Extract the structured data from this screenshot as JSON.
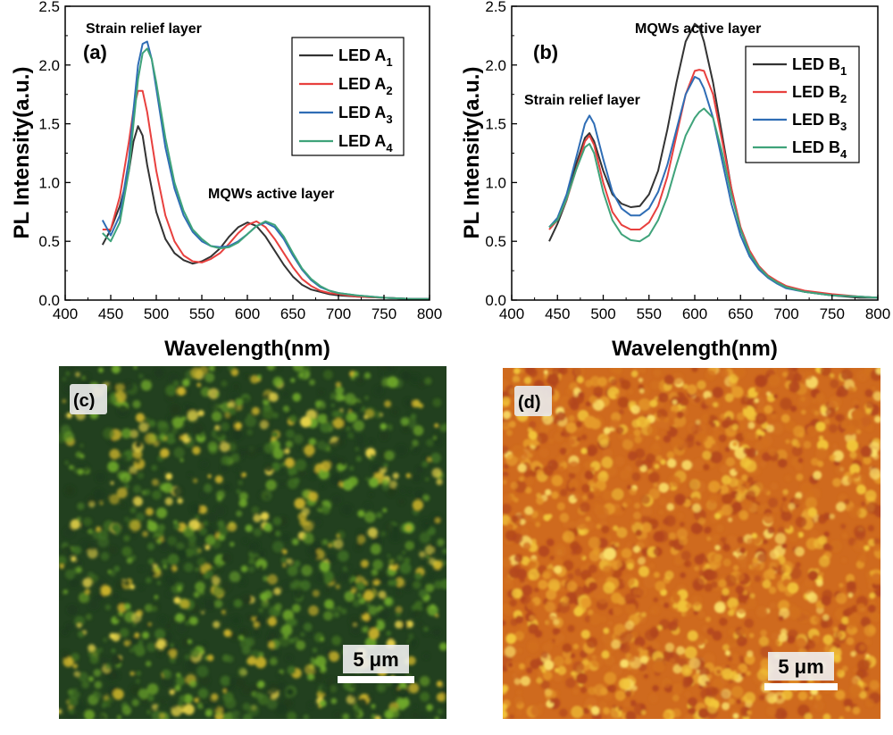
{
  "chart_data": [
    {
      "panel": "(a)",
      "type": "line",
      "xlabel": "Wavelength(nm)",
      "ylabel": "PL Intensity(a.u.)",
      "xlim": [
        400,
        800
      ],
      "ylim": [
        0.0,
        2.5
      ],
      "xticks": [
        "400",
        "450",
        "500",
        "550",
        "600",
        "650",
        "700",
        "750",
        "800"
      ],
      "yticks": [
        "0.0",
        "0.5",
        "1.0",
        "1.5",
        "2.0",
        "2.5"
      ],
      "legend_position": "top-right",
      "annotations": [
        {
          "text": "Strain relief layer",
          "x": 455,
          "y": 2.38
        },
        {
          "text": "MQWs active layer",
          "x": 610,
          "y": 0.93
        }
      ],
      "series": [
        {
          "name": "LED A",
          "sub": "1",
          "color": "#333333",
          "x": [
            441,
            450,
            460,
            470,
            475,
            480,
            485,
            490,
            500,
            510,
            520,
            530,
            540,
            550,
            560,
            570,
            580,
            590,
            600,
            610,
            620,
            630,
            640,
            650,
            660,
            670,
            680,
            690,
            700,
            720,
            750,
            780,
            800
          ],
          "y": [
            0.47,
            0.6,
            0.8,
            1.1,
            1.35,
            1.48,
            1.4,
            1.15,
            0.75,
            0.52,
            0.4,
            0.34,
            0.31,
            0.33,
            0.37,
            0.44,
            0.54,
            0.62,
            0.66,
            0.63,
            0.54,
            0.42,
            0.3,
            0.2,
            0.13,
            0.09,
            0.07,
            0.05,
            0.04,
            0.03,
            0.02,
            0.01,
            0.01
          ]
        },
        {
          "name": "LED A",
          "sub": "2",
          "color": "#e8403e",
          "x": [
            441,
            450,
            460,
            470,
            475,
            480,
            485,
            490,
            500,
            510,
            520,
            530,
            540,
            550,
            560,
            570,
            580,
            590,
            600,
            610,
            620,
            630,
            640,
            650,
            660,
            670,
            680,
            690,
            700,
            720,
            750,
            780,
            800
          ],
          "y": [
            0.6,
            0.6,
            0.88,
            1.35,
            1.62,
            1.78,
            1.78,
            1.6,
            1.1,
            0.72,
            0.5,
            0.38,
            0.33,
            0.32,
            0.35,
            0.4,
            0.48,
            0.57,
            0.64,
            0.67,
            0.62,
            0.52,
            0.4,
            0.28,
            0.18,
            0.12,
            0.08,
            0.06,
            0.05,
            0.03,
            0.02,
            0.01,
            0.01
          ]
        },
        {
          "name": "LED A",
          "sub": "3",
          "color": "#2f6db5",
          "x": [
            441,
            450,
            460,
            470,
            475,
            480,
            485,
            490,
            495,
            500,
            510,
            520,
            530,
            540,
            550,
            560,
            570,
            580,
            590,
            600,
            610,
            620,
            630,
            640,
            650,
            660,
            670,
            680,
            690,
            700,
            720,
            750,
            780,
            800
          ],
          "y": [
            0.68,
            0.55,
            0.72,
            1.2,
            1.62,
            2.0,
            2.18,
            2.2,
            2.05,
            1.8,
            1.3,
            0.95,
            0.72,
            0.58,
            0.5,
            0.46,
            0.45,
            0.46,
            0.5,
            0.56,
            0.63,
            0.66,
            0.62,
            0.52,
            0.38,
            0.26,
            0.17,
            0.11,
            0.08,
            0.06,
            0.04,
            0.02,
            0.01,
            0.01
          ]
        },
        {
          "name": "LED A",
          "sub": "4",
          "color": "#3fa37a",
          "x": [
            441,
            450,
            460,
            470,
            475,
            480,
            485,
            490,
            495,
            500,
            510,
            520,
            530,
            540,
            550,
            560,
            570,
            580,
            590,
            600,
            610,
            620,
            630,
            640,
            650,
            660,
            670,
            680,
            690,
            700,
            720,
            750,
            780,
            800
          ],
          "y": [
            0.57,
            0.5,
            0.66,
            1.1,
            1.5,
            1.88,
            2.1,
            2.14,
            2.05,
            1.85,
            1.38,
            1.0,
            0.76,
            0.6,
            0.52,
            0.46,
            0.44,
            0.45,
            0.49,
            0.56,
            0.63,
            0.67,
            0.64,
            0.54,
            0.4,
            0.27,
            0.18,
            0.12,
            0.08,
            0.06,
            0.04,
            0.02,
            0.01,
            0.01
          ]
        }
      ]
    },
    {
      "panel": "(b)",
      "type": "line",
      "xlabel": "Wavelength(nm)",
      "ylabel": "PL Intensity(a.u.)",
      "xlim": [
        400,
        800
      ],
      "ylim": [
        0.0,
        2.5
      ],
      "xticks": [
        "400",
        "450",
        "500",
        "550",
        "600",
        "650",
        "700",
        "750",
        "800"
      ],
      "yticks": [
        "0.0",
        "0.5",
        "1.0",
        "1.5",
        "2.0",
        "2.5"
      ],
      "legend_position": "top-right",
      "annotations": [
        {
          "text": "MQWs active layer",
          "x": 610,
          "y": 2.53
        },
        {
          "text": "Strain relief layer",
          "x": 453,
          "y": 1.77
        }
      ],
      "series": [
        {
          "name": "LED B",
          "sub": "1",
          "color": "#333333",
          "x": [
            441,
            450,
            460,
            470,
            480,
            485,
            490,
            500,
            510,
            520,
            530,
            540,
            550,
            560,
            570,
            580,
            590,
            600,
            605,
            610,
            620,
            630,
            640,
            650,
            660,
            670,
            680,
            690,
            700,
            720,
            750,
            780,
            800
          ],
          "y": [
            0.5,
            0.65,
            0.85,
            1.15,
            1.38,
            1.42,
            1.35,
            1.1,
            0.9,
            0.82,
            0.79,
            0.8,
            0.9,
            1.1,
            1.45,
            1.85,
            2.2,
            2.35,
            2.32,
            2.2,
            1.85,
            1.4,
            0.95,
            0.6,
            0.4,
            0.28,
            0.2,
            0.15,
            0.11,
            0.07,
            0.04,
            0.02,
            0.02
          ]
        },
        {
          "name": "LED B",
          "sub": "2",
          "color": "#e8403e",
          "x": [
            441,
            450,
            460,
            470,
            480,
            485,
            490,
            500,
            510,
            520,
            530,
            540,
            550,
            560,
            570,
            580,
            590,
            600,
            605,
            610,
            620,
            630,
            640,
            650,
            660,
            670,
            680,
            690,
            700,
            720,
            750,
            780,
            800
          ],
          "y": [
            0.6,
            0.68,
            0.85,
            1.1,
            1.35,
            1.4,
            1.32,
            1.0,
            0.75,
            0.64,
            0.6,
            0.6,
            0.66,
            0.8,
            1.05,
            1.4,
            1.75,
            1.95,
            1.96,
            1.95,
            1.75,
            1.35,
            0.95,
            0.62,
            0.42,
            0.29,
            0.21,
            0.16,
            0.12,
            0.08,
            0.05,
            0.03,
            0.02
          ]
        },
        {
          "name": "LED B",
          "sub": "3",
          "color": "#2f6db5",
          "x": [
            441,
            450,
            460,
            470,
            480,
            485,
            490,
            500,
            510,
            520,
            530,
            540,
            550,
            560,
            570,
            580,
            590,
            600,
            605,
            610,
            620,
            630,
            640,
            650,
            660,
            670,
            680,
            690,
            700,
            720,
            750,
            780,
            800
          ],
          "y": [
            0.62,
            0.7,
            0.9,
            1.2,
            1.5,
            1.57,
            1.5,
            1.2,
            0.92,
            0.78,
            0.72,
            0.72,
            0.78,
            0.92,
            1.15,
            1.45,
            1.75,
            1.9,
            1.88,
            1.8,
            1.55,
            1.18,
            0.82,
            0.55,
            0.37,
            0.26,
            0.19,
            0.14,
            0.1,
            0.07,
            0.04,
            0.03,
            0.02
          ]
        },
        {
          "name": "LED B",
          "sub": "4",
          "color": "#3fa37a",
          "x": [
            441,
            450,
            460,
            470,
            480,
            485,
            490,
            500,
            510,
            520,
            530,
            540,
            550,
            560,
            570,
            580,
            590,
            600,
            605,
            610,
            620,
            630,
            640,
            650,
            660,
            670,
            680,
            690,
            700,
            720,
            750,
            780,
            800
          ],
          "y": [
            0.62,
            0.68,
            0.86,
            1.1,
            1.3,
            1.33,
            1.25,
            0.92,
            0.68,
            0.56,
            0.51,
            0.5,
            0.55,
            0.68,
            0.88,
            1.15,
            1.4,
            1.55,
            1.6,
            1.63,
            1.55,
            1.25,
            0.9,
            0.6,
            0.4,
            0.28,
            0.2,
            0.15,
            0.11,
            0.07,
            0.04,
            0.03,
            0.02
          ]
        }
      ]
    }
  ],
  "images": [
    {
      "label": "(c)",
      "scale_bar": "5 μm",
      "palette": [
        "#1f3a1c",
        "#3f6e22",
        "#6fa82a",
        "#c9b12a",
        "#e8d44a"
      ]
    },
    {
      "label": "(d)",
      "scale_bar": "5 μm",
      "palette": [
        "#b2461c",
        "#d2701f",
        "#e59a2a",
        "#f2c63a",
        "#fae06a"
      ]
    }
  ]
}
